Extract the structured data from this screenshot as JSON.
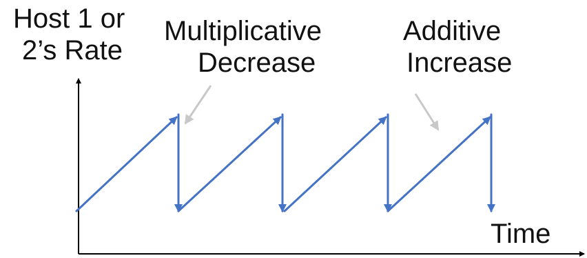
{
  "diagram": {
    "y_axis_label": [
      "Host 1 or",
      "2’s Rate"
    ],
    "x_axis_label": "Time",
    "annotations": {
      "multiplicative_decrease": [
        "Multiplicative",
        "Decrease"
      ],
      "additive_increase": [
        "Additive",
        "Increase"
      ]
    },
    "colors": {
      "rate_curve": "#4472C4",
      "annotation_arrow": "#C8C8C8",
      "axis": "#000000",
      "text": "#111111"
    }
  }
}
